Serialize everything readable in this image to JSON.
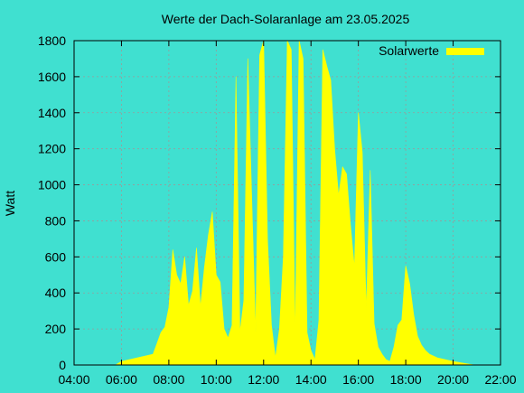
{
  "chart_data": {
    "type": "area",
    "title": "Werte der Dach-Solaranlage am 23.05.2025",
    "xlabel": "",
    "ylabel": "Watt",
    "xlim": [
      "04:00",
      "22:00"
    ],
    "ylim": [
      0,
      1800
    ],
    "x_ticks": [
      "04:00",
      "06:00",
      "08:00",
      "10:00",
      "12:00",
      "14:00",
      "16:00",
      "18:00",
      "20:00",
      "22:00"
    ],
    "y_ticks": [
      0,
      200,
      400,
      600,
      800,
      1000,
      1200,
      1400,
      1600,
      1800
    ],
    "grid": true,
    "legend_position": "top-right",
    "colors": {
      "background": "#40E0D0",
      "series": "#FFFF00",
      "grid": "#9a9a9a",
      "axis": "#000000"
    },
    "series": [
      {
        "name": "Solarwerte",
        "x": [
          "05:45",
          "06:00",
          "06:30",
          "07:00",
          "07:20",
          "07:30",
          "07:40",
          "07:50",
          "08:00",
          "08:10",
          "08:20",
          "08:30",
          "08:40",
          "08:50",
          "09:00",
          "09:10",
          "09:20",
          "09:30",
          "09:40",
          "09:50",
          "10:00",
          "10:10",
          "10:20",
          "10:30",
          "10:40",
          "10:50",
          "11:00",
          "11:10",
          "11:20",
          "11:30",
          "11:40",
          "11:50",
          "12:00",
          "12:10",
          "12:20",
          "12:30",
          "12:40",
          "12:50",
          "13:00",
          "13:10",
          "13:20",
          "13:30",
          "13:40",
          "13:50",
          "14:00",
          "14:10",
          "14:20",
          "14:30",
          "14:40",
          "14:50",
          "15:00",
          "15:10",
          "15:20",
          "15:30",
          "15:40",
          "15:50",
          "16:00",
          "16:10",
          "16:20",
          "16:30",
          "16:40",
          "16:50",
          "17:00",
          "17:10",
          "17:20",
          "17:30",
          "17:40",
          "17:50",
          "18:00",
          "18:10",
          "18:20",
          "18:30",
          "18:40",
          "18:50",
          "19:00",
          "19:20",
          "19:40",
          "20:00",
          "20:20",
          "20:40",
          "20:55"
        ],
        "values": [
          0,
          20,
          35,
          50,
          60,
          120,
          180,
          210,
          320,
          640,
          500,
          450,
          600,
          330,
          410,
          650,
          320,
          540,
          720,
          850,
          500,
          460,
          200,
          150,
          220,
          1600,
          180,
          360,
          1700,
          920,
          180,
          1720,
          1800,
          700,
          220,
          40,
          200,
          600,
          1800,
          1750,
          150,
          1800,
          1700,
          180,
          80,
          30,
          250,
          1750,
          1660,
          1580,
          1200,
          940,
          1100,
          1060,
          780,
          540,
          1400,
          1180,
          300,
          1080,
          230,
          100,
          60,
          30,
          20,
          100,
          220,
          250,
          550,
          450,
          280,
          160,
          110,
          80,
          60,
          40,
          30,
          20,
          12,
          5,
          0
        ]
      }
    ]
  }
}
